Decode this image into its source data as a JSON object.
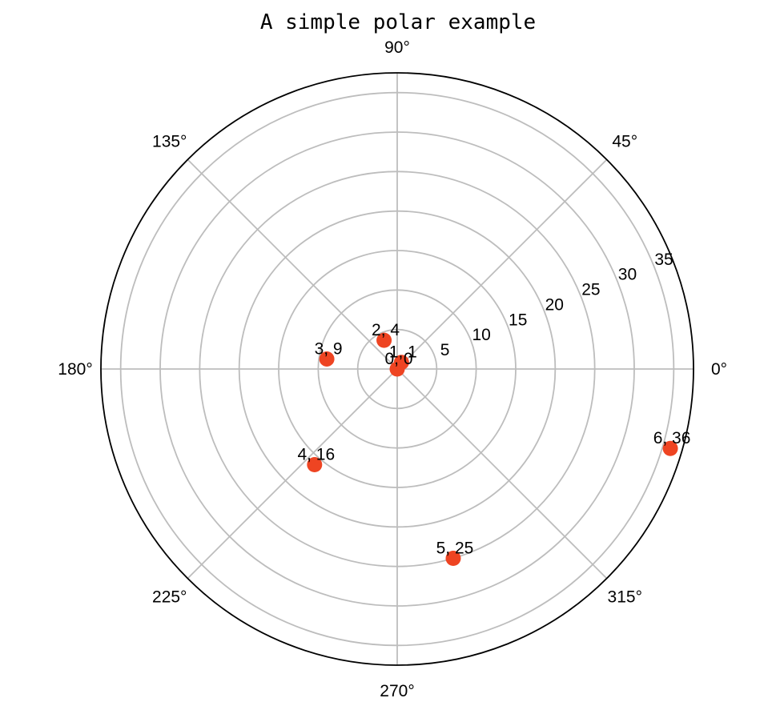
{
  "chart_data": {
    "type": "scatter",
    "projection": "polar",
    "title": "A simple polar example",
    "theta_unit": "radians",
    "r_max": 37.5,
    "grid": true,
    "angle_ticks": [
      {
        "deg": 0,
        "label": "0°"
      },
      {
        "deg": 45,
        "label": "45°"
      },
      {
        "deg": 90,
        "label": "90°"
      },
      {
        "deg": 135,
        "label": "135°"
      },
      {
        "deg": 180,
        "label": "180°"
      },
      {
        "deg": 225,
        "label": "225°"
      },
      {
        "deg": 270,
        "label": "270°"
      },
      {
        "deg": 315,
        "label": "315°"
      }
    ],
    "radial_ticks": [
      5,
      10,
      15,
      20,
      25,
      30,
      35
    ],
    "radial_tick_labels": [
      "5",
      "10",
      "15",
      "20",
      "25",
      "30",
      "35"
    ],
    "points": [
      {
        "theta": 0,
        "r": 0,
        "label": "0, 0"
      },
      {
        "theta": 1,
        "r": 1,
        "label": "1, 1"
      },
      {
        "theta": 2,
        "r": 4,
        "label": "2, 4"
      },
      {
        "theta": 3,
        "r": 9,
        "label": "3, 9"
      },
      {
        "theta": 4,
        "r": 16,
        "label": "4, 16"
      },
      {
        "theta": 5,
        "r": 25,
        "label": "5, 25"
      },
      {
        "theta": 6,
        "r": 36,
        "label": "6, 36"
      }
    ],
    "marker_color": "#ee4422",
    "grid_color": "#bdbdbd"
  }
}
